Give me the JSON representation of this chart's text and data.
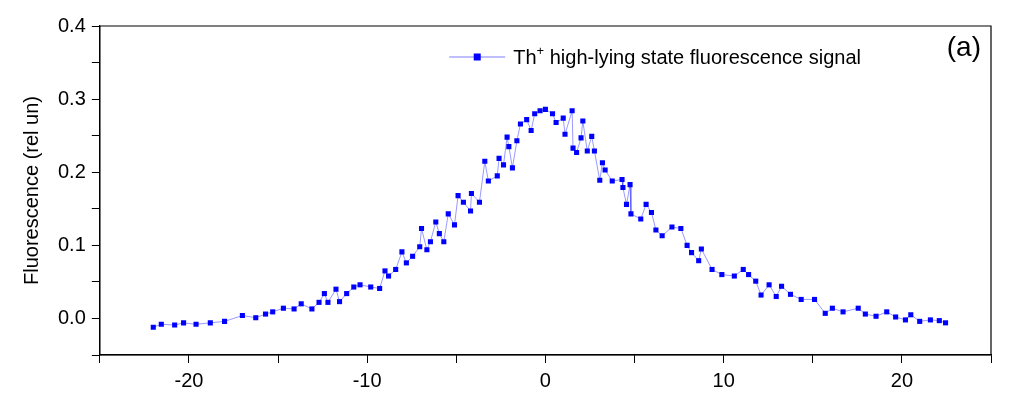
{
  "chart_data": {
    "type": "line",
    "ylabel": "Fluorescence (rel un)",
    "annotations": [
      "(a)"
    ],
    "legend": "top right",
    "marker": "square",
    "line_style": "solid",
    "grid": false,
    "xlim": [
      -25,
      25
    ],
    "xticks": [
      {
        "value": -25,
        "label": null
      },
      -20,
      {
        "value": -15,
        "label": null
      },
      -10,
      {
        "value": -5,
        "label": null
      },
      0,
      {
        "value": 5,
        "label": null
      },
      10,
      {
        "value": 15,
        "label": null
      },
      20,
      {
        "value": 25,
        "label": null
      }
    ],
    "ylim": [
      -0.05,
      0.4
    ],
    "yticks": [
      {
        "value": -0.05,
        "label": null
      },
      {
        "value": 0,
        "label": "0.0"
      },
      {
        "value": 0.05,
        "label": null
      },
      0.1,
      {
        "value": 0.15,
        "label": null
      },
      0.2,
      {
        "value": 0.25,
        "label": null
      },
      0.3,
      {
        "value": 0.35,
        "label": null
      },
      0.4
    ],
    "series": [
      {
        "name": "Th$^{+}$ high-lying state fluorescence signal",
        "color": "#0000ff",
        "x": [
          -22.0,
          -21.55,
          -20.8,
          -20.3,
          -19.6,
          -18.8,
          -18.0,
          -17.0,
          -16.25,
          -15.7,
          -15.3,
          -14.7,
          -14.1,
          -13.7,
          -13.1,
          -12.7,
          -12.4,
          -12.2,
          -11.75,
          -11.55,
          -11.15,
          -10.75,
          -10.4,
          -9.8,
          -9.3,
          -9.0,
          -8.8,
          -8.4,
          -8.05,
          -7.8,
          -7.45,
          -7.05,
          -6.95,
          -6.65,
          -6.45,
          -6.15,
          -5.95,
          -5.7,
          -5.45,
          -5.1,
          -4.9,
          -4.6,
          -4.2,
          -4.15,
          -3.7,
          -3.4,
          -3.2,
          -2.7,
          -2.6,
          -2.35,
          -2.15,
          -2.05,
          -1.85,
          -1.6,
          -1.4,
          -1.05,
          -0.8,
          -0.6,
          -0.3,
          0.0,
          0.4,
          0.6,
          1.0,
          1.1,
          1.5,
          1.55,
          1.75,
          2.0,
          2.1,
          2.35,
          2.6,
          2.75,
          3.05,
          3.2,
          3.35,
          3.75,
          4.3,
          4.35,
          4.55,
          4.75,
          4.8,
          5.35,
          5.65,
          5.95,
          6.2,
          6.55,
          7.1,
          7.6,
          7.95,
          8.2,
          8.6,
          8.75,
          9.35,
          9.9,
          10.6,
          11.1,
          11.4,
          11.8,
          12.1,
          12.55,
          12.95,
          13.25,
          13.75,
          14.35,
          15.1,
          15.7,
          16.1,
          16.7,
          17.55,
          17.95,
          18.55,
          19.15,
          19.65,
          20.2,
          20.5,
          21.0,
          21.6,
          22.1,
          22.45
        ],
        "values": [
          -0.012,
          -0.008,
          -0.009,
          -0.006,
          -0.008,
          -0.006,
          -0.004,
          0.004,
          0.001,
          0.006,
          0.009,
          0.014,
          0.013,
          0.02,
          0.013,
          0.022,
          0.034,
          0.022,
          0.04,
          0.023,
          0.034,
          0.043,
          0.046,
          0.043,
          0.041,
          0.065,
          0.058,
          0.067,
          0.091,
          0.076,
          0.085,
          0.098,
          0.123,
          0.094,
          0.105,
          0.132,
          0.116,
          0.105,
          0.143,
          0.128,
          0.168,
          0.159,
          0.147,
          0.171,
          0.159,
          0.215,
          0.188,
          0.195,
          0.219,
          0.21,
          0.248,
          0.235,
          0.206,
          0.243,
          0.266,
          0.272,
          0.257,
          0.28,
          0.284,
          0.286,
          0.28,
          0.268,
          0.274,
          0.252,
          0.284,
          0.233,
          0.227,
          0.247,
          0.27,
          0.229,
          0.249,
          0.229,
          0.189,
          0.213,
          0.203,
          0.188,
          0.19,
          0.179,
          0.156,
          0.183,
          0.143,
          0.136,
          0.156,
          0.145,
          0.121,
          0.113,
          0.125,
          0.123,
          0.1,
          0.09,
          0.079,
          0.095,
          0.067,
          0.06,
          0.058,
          0.067,
          0.06,
          0.051,
          0.032,
          0.046,
          0.03,
          0.044,
          0.033,
          0.026,
          0.026,
          0.007,
          0.014,
          0.009,
          0.014,
          0.006,
          0.003,
          0.009,
          0.002,
          -0.002,
          0.005,
          -0.004,
          -0.002,
          -0.003,
          -0.006
        ]
      }
    ]
  }
}
